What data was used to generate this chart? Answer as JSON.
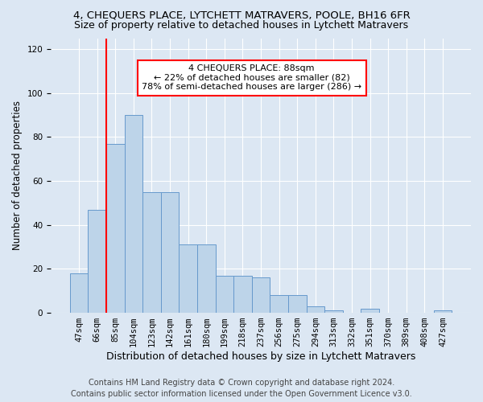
{
  "title": "4, CHEQUERS PLACE, LYTCHETT MATRAVERS, POOLE, BH16 6FR",
  "subtitle": "Size of property relative to detached houses in Lytchett Matravers",
  "xlabel": "Distribution of detached houses by size in Lytchett Matravers",
  "ylabel": "Number of detached properties",
  "categories": [
    "47sqm",
    "66sqm",
    "85sqm",
    "104sqm",
    "123sqm",
    "142sqm",
    "161sqm",
    "180sqm",
    "199sqm",
    "218sqm",
    "237sqm",
    "256sqm",
    "275sqm",
    "294sqm",
    "313sqm",
    "332sqm",
    "351sqm",
    "370sqm",
    "389sqm",
    "408sqm",
    "427sqm"
  ],
  "values": [
    18,
    47,
    77,
    90,
    55,
    55,
    31,
    31,
    17,
    17,
    16,
    8,
    8,
    3,
    1,
    0,
    2,
    0,
    0,
    0,
    1
  ],
  "bar_color": "#bdd4e9",
  "bar_edge_color": "#6699cc",
  "annotation_text": "4 CHEQUERS PLACE: 88sqm\n← 22% of detached houses are smaller (82)\n78% of semi-detached houses are larger (286) →",
  "annotation_box_color": "white",
  "annotation_box_edge_color": "red",
  "red_line_x": 1.5,
  "ylim": [
    0,
    125
  ],
  "yticks": [
    0,
    20,
    40,
    60,
    80,
    100,
    120
  ],
  "background_color": "#dce7f3",
  "plot_bg_color": "#dce7f3",
  "footer_line1": "Contains HM Land Registry data © Crown copyright and database right 2024.",
  "footer_line2": "Contains public sector information licensed under the Open Government Licence v3.0.",
  "title_fontsize": 9.5,
  "subtitle_fontsize": 9,
  "xlabel_fontsize": 9,
  "ylabel_fontsize": 8.5,
  "tick_fontsize": 7.5,
  "annotation_fontsize": 8,
  "footer_fontsize": 7
}
